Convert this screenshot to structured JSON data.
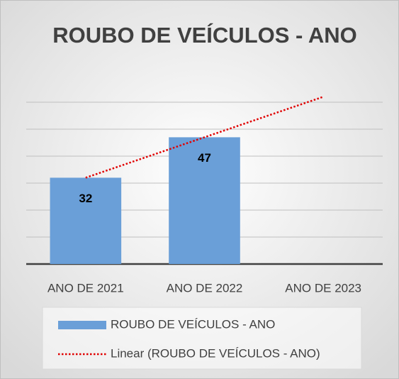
{
  "chart_data": {
    "type": "bar",
    "title": "ROUBO DE VEÍCULOS - ANO",
    "categories": [
      "ANO DE 2021",
      "ANO DE 2022",
      "ANO DE 2023"
    ],
    "series": [
      {
        "name": "ROUBO DE VEÍCULOS - ANO",
        "color": "#6a9fd8",
        "values": [
          32,
          47,
          null
        ]
      },
      {
        "name": "Linear (ROUBO DE VEÍCULOS - ANO)",
        "color": "#e00000",
        "type": "line",
        "dotted": true,
        "values": [
          32,
          47,
          62
        ]
      }
    ],
    "ylim": [
      0,
      70
    ],
    "yticks": [
      0,
      10,
      20,
      30,
      40,
      50,
      60
    ],
    "grid": true,
    "legend": "bottom"
  }
}
